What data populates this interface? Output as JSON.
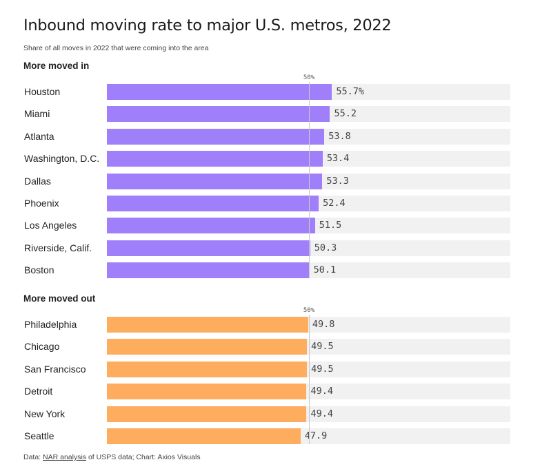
{
  "title": "Inbound moving rate to major U.S. metros, 2022",
  "subtitle": "Share of all moves in 2022 that were coming into the area",
  "footer": {
    "prefix": "Data: ",
    "link_text": "NAR analysis",
    "suffix": " of USPS data; Chart: Axios Visuals"
  },
  "colors": {
    "moved_in": "#a07ffb",
    "moved_out": "#feac5d",
    "track": "#f1f1f1"
  },
  "chart_data": {
    "type": "bar",
    "orientation": "horizontal",
    "title": "Inbound moving rate to major U.S. metros, 2022",
    "subtitle": "Share of all moves in 2022 that were coming into the area",
    "xlim": [
      0,
      100
    ],
    "reference_line": {
      "value": 50,
      "label": "50%"
    },
    "groups": [
      {
        "name": "More moved in",
        "categories": [
          "Houston",
          "Miami",
          "Atlanta",
          "Washington, D.C.",
          "Dallas",
          "Phoenix",
          "Los Angeles",
          "Riverside, Calif.",
          "Boston"
        ],
        "values": [
          55.7,
          55.2,
          53.8,
          53.4,
          53.3,
          52.4,
          51.5,
          50.3,
          50.1
        ],
        "labels": [
          "55.7%",
          "55.2",
          "53.8",
          "53.4",
          "53.3",
          "52.4",
          "51.5",
          "50.3",
          "50.1"
        ]
      },
      {
        "name": "More moved out",
        "categories": [
          "Philadelphia",
          "Chicago",
          "San Francisco",
          "Detroit",
          "New York",
          "Seattle"
        ],
        "values": [
          49.8,
          49.5,
          49.5,
          49.4,
          49.4,
          47.9
        ],
        "labels": [
          "49.8",
          "49.5",
          "49.5",
          "49.4",
          "49.4",
          "47.9"
        ]
      }
    ]
  }
}
